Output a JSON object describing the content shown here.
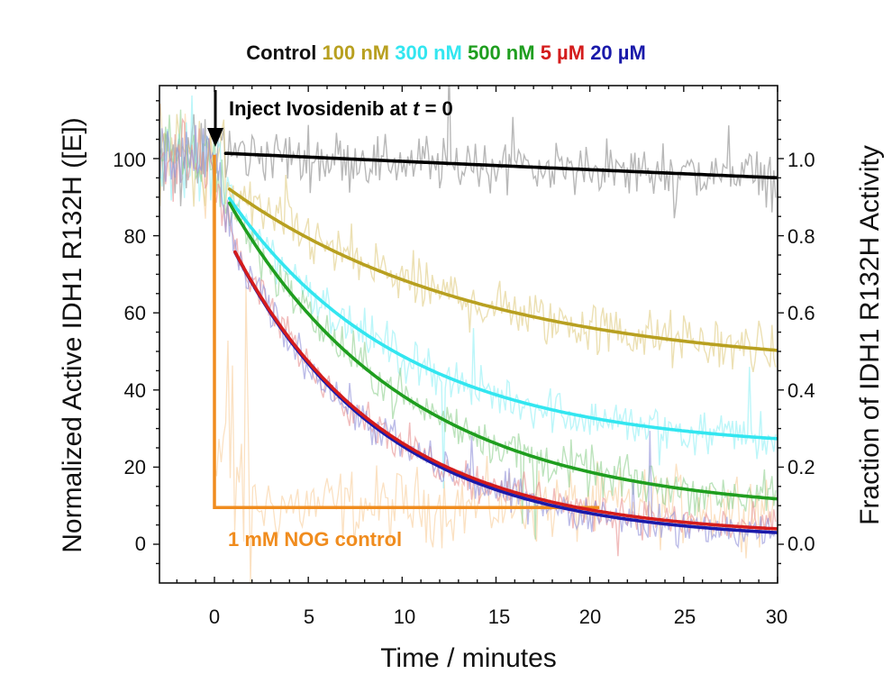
{
  "chart_data": {
    "type": "line",
    "title": "",
    "legend_position": "top",
    "xlabel": "Time / minutes",
    "ylabel": "Normalized Active IDH1 R132H ([E])",
    "y2label": "Fraction of IDH1 R132H Activity",
    "xlim": [
      -3,
      30
    ],
    "ylim": [
      -10,
      120
    ],
    "y2lim": [
      -0.1,
      1.2
    ],
    "xticks": [
      0,
      5,
      10,
      15,
      20,
      25,
      30
    ],
    "xtick_labels": [
      "0",
      "5",
      "10",
      "15",
      "20",
      "25",
      "30"
    ],
    "yticks": [
      0,
      20,
      40,
      60,
      80,
      100
    ],
    "ytick_labels": [
      "0",
      "20",
      "40",
      "60",
      "80",
      "100"
    ],
    "y2ticks": [
      0.0,
      0.2,
      0.4,
      0.6,
      0.8,
      1.0
    ],
    "y2tick_labels": [
      "0.0",
      "0.2",
      "0.4",
      "0.6",
      "0.8",
      "1.0"
    ],
    "series": [
      {
        "name": "Control",
        "legend_label": "Control",
        "color": "#000000",
        "raw_color": "#9a9a9a",
        "fit": {
          "t0": 0.6,
          "t1": 30,
          "plateau": 0,
          "amp": 101.5,
          "k": 0.0022
        },
        "noise": 6
      },
      {
        "name": "100 nM",
        "legend_label": "100 nM",
        "color": "#b8a020",
        "raw_color": "#e0cc80",
        "fit": {
          "t0": 0.8,
          "t1": 30,
          "plateau": 45,
          "amp": 50,
          "k": 0.075
        },
        "noise": 6
      },
      {
        "name": "300 nM",
        "legend_label": "300 nM",
        "color": "#33e6f0",
        "raw_color": "#8ff0f5",
        "fit": {
          "t0": 0.8,
          "t1": 30,
          "plateau": 24.5,
          "amp": 71,
          "k": 0.107
        },
        "noise": 5
      },
      {
        "name": "500 nM",
        "legend_label": "500 nM",
        "color": "#1f9e1f",
        "raw_color": "#8fd08f",
        "fit": {
          "t0": 0.8,
          "t1": 30,
          "plateau": 8,
          "amp": 87.5,
          "k": 0.105
        },
        "noise": 5
      },
      {
        "name": "5 µM",
        "legend_label": "5 µM",
        "color": "#d41c1c",
        "raw_color": "#e89090",
        "fit": {
          "t0": 1.1,
          "t1": 30,
          "plateau": 2,
          "amp": 84.7,
          "k": 0.125
        },
        "noise": 4
      },
      {
        "name": "20 µM",
        "legend_label": "20 µM",
        "color": "#1a1aaa",
        "raw_color": "#9090d8",
        "fit": {
          "t0": 1.1,
          "t1": 30,
          "plateau": 1,
          "amp": 85.7,
          "k": 0.125
        },
        "noise": 4
      }
    ],
    "nog_control": {
      "label": "1 mM NOG control",
      "color": "#f08c1e",
      "raw_color": "#f8c890",
      "x": [
        0,
        0,
        20.5
      ],
      "y": [
        101,
        9.5,
        9.5
      ]
    },
    "annotations": {
      "inject_text": "Inject Ivosidenib at ",
      "inject_var": "t",
      "inject_tail": " = 0"
    }
  }
}
